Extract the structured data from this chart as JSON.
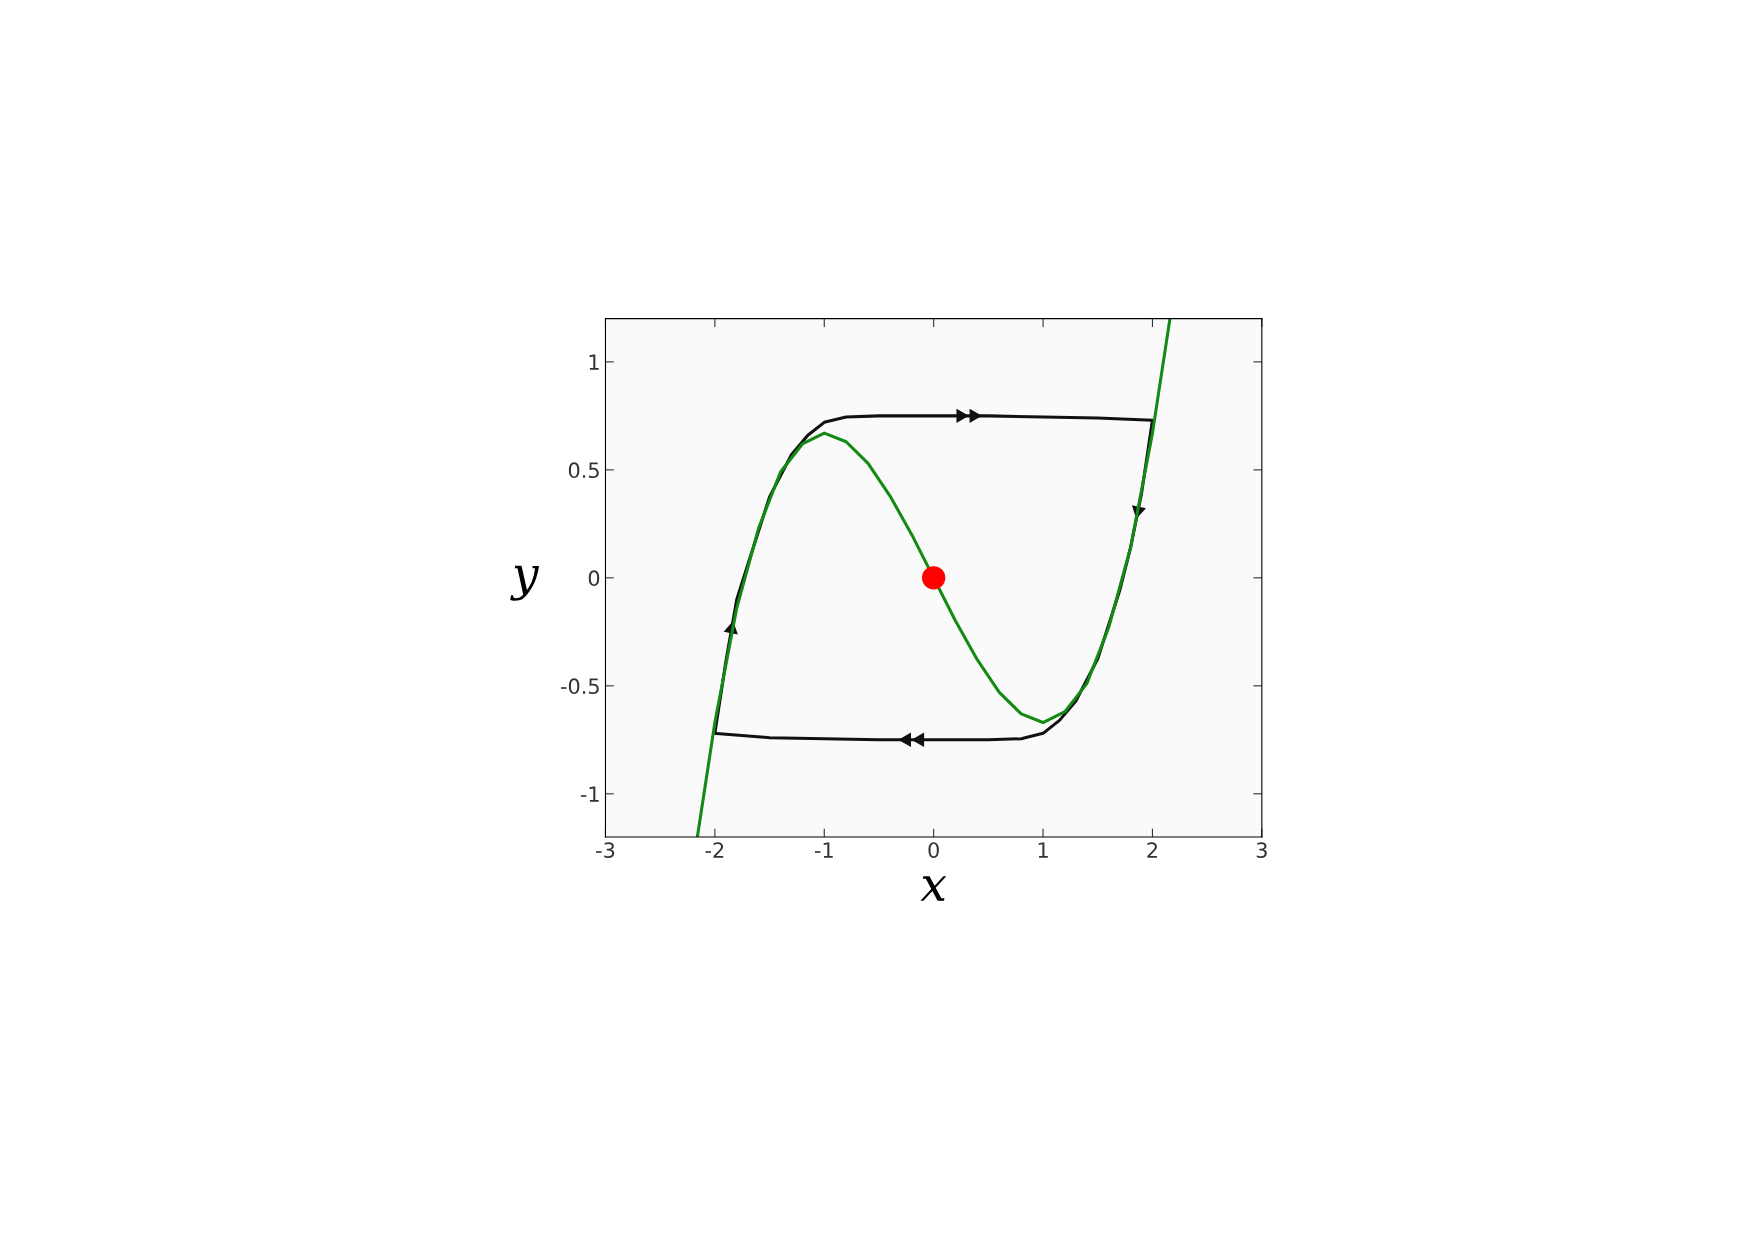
{
  "chart_data": {
    "type": "line",
    "xlabel": "x",
    "ylabel": "y",
    "xlim": [
      -3,
      3
    ],
    "ylim": [
      -1.2,
      1.2
    ],
    "xticks": [
      -3,
      -2,
      -1,
      0,
      1,
      2,
      3
    ],
    "yticks": [
      -1,
      -0.5,
      0,
      0.5,
      1
    ],
    "grid": false,
    "legend": false,
    "line_style": "solid",
    "series": [
      {
        "color": "#138a13",
        "x": [
          -2.16,
          -2.0,
          -1.8,
          -1.6,
          -1.4,
          -1.2,
          -1.0,
          -0.8,
          -0.6,
          -0.4,
          -0.2,
          0.0,
          0.2,
          0.4,
          0.6,
          0.8,
          1.0,
          1.2,
          1.4,
          1.6,
          1.8,
          2.0,
          2.16
        ],
        "values": [
          -1.2,
          -0.67,
          -0.14,
          0.23,
          0.49,
          0.62,
          0.67,
          0.63,
          0.53,
          0.38,
          0.2,
          0.0,
          -0.2,
          -0.38,
          -0.53,
          -0.63,
          -0.67,
          -0.62,
          -0.49,
          -0.23,
          0.14,
          0.67,
          1.2
        ]
      },
      {
        "type": "scatter",
        "color": "#ff0000",
        "x": [
          0
        ],
        "values": [
          0
        ]
      }
    ]
  }
}
